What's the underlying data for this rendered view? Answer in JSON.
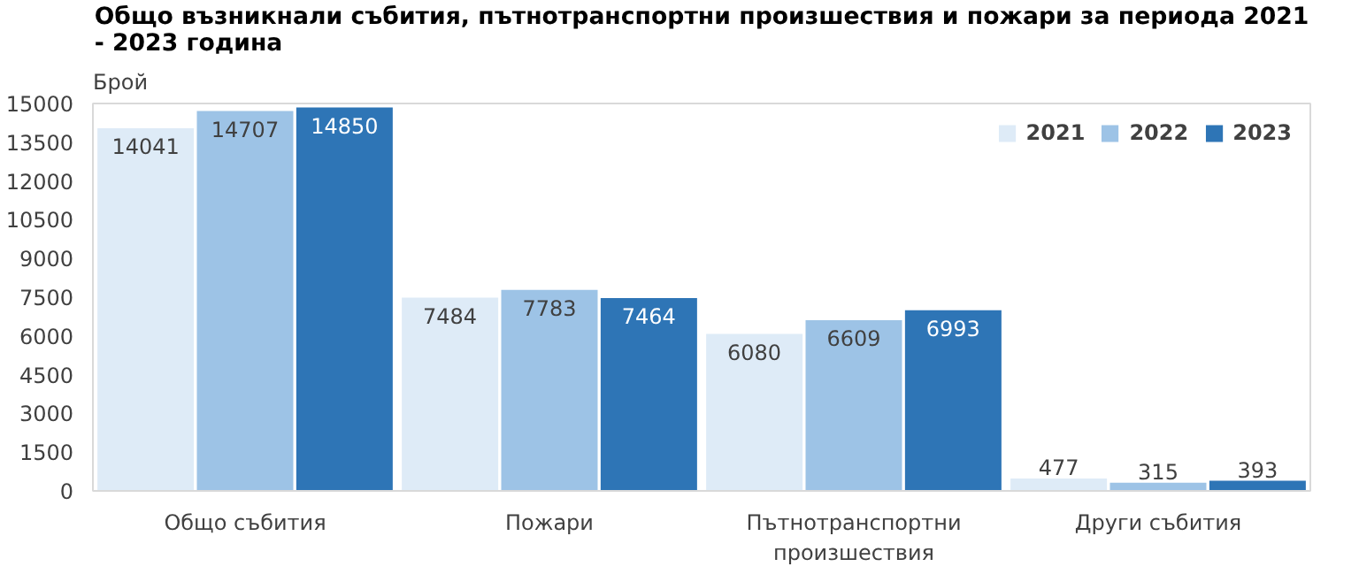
{
  "chart_data": {
    "type": "bar",
    "title": "Общо възникнали събития, пътнотранспортни произшествия и пожари за периода 2021 - 2023 година",
    "ylabel": "Брой",
    "categories": [
      "Общо събития",
      "Пожари",
      "Пътнотранспортни\nпроизшествия",
      "Други събития"
    ],
    "series": [
      {
        "name": "2021",
        "color": "#deebf7",
        "values": [
          14041,
          7484,
          6080,
          477
        ]
      },
      {
        "name": "2022",
        "color": "#9dc3e6",
        "values": [
          14707,
          7783,
          6609,
          315
        ]
      },
      {
        "name": "2023",
        "color": "#2e75b6",
        "values": [
          14850,
          7464,
          6993,
          393
        ]
      }
    ],
    "ylim": [
      0,
      15000
    ],
    "yticks": [
      0,
      1500,
      3000,
      4500,
      6000,
      7500,
      9000,
      10500,
      12000,
      13500,
      15000
    ],
    "data_labels": true,
    "legend": "top right"
  }
}
